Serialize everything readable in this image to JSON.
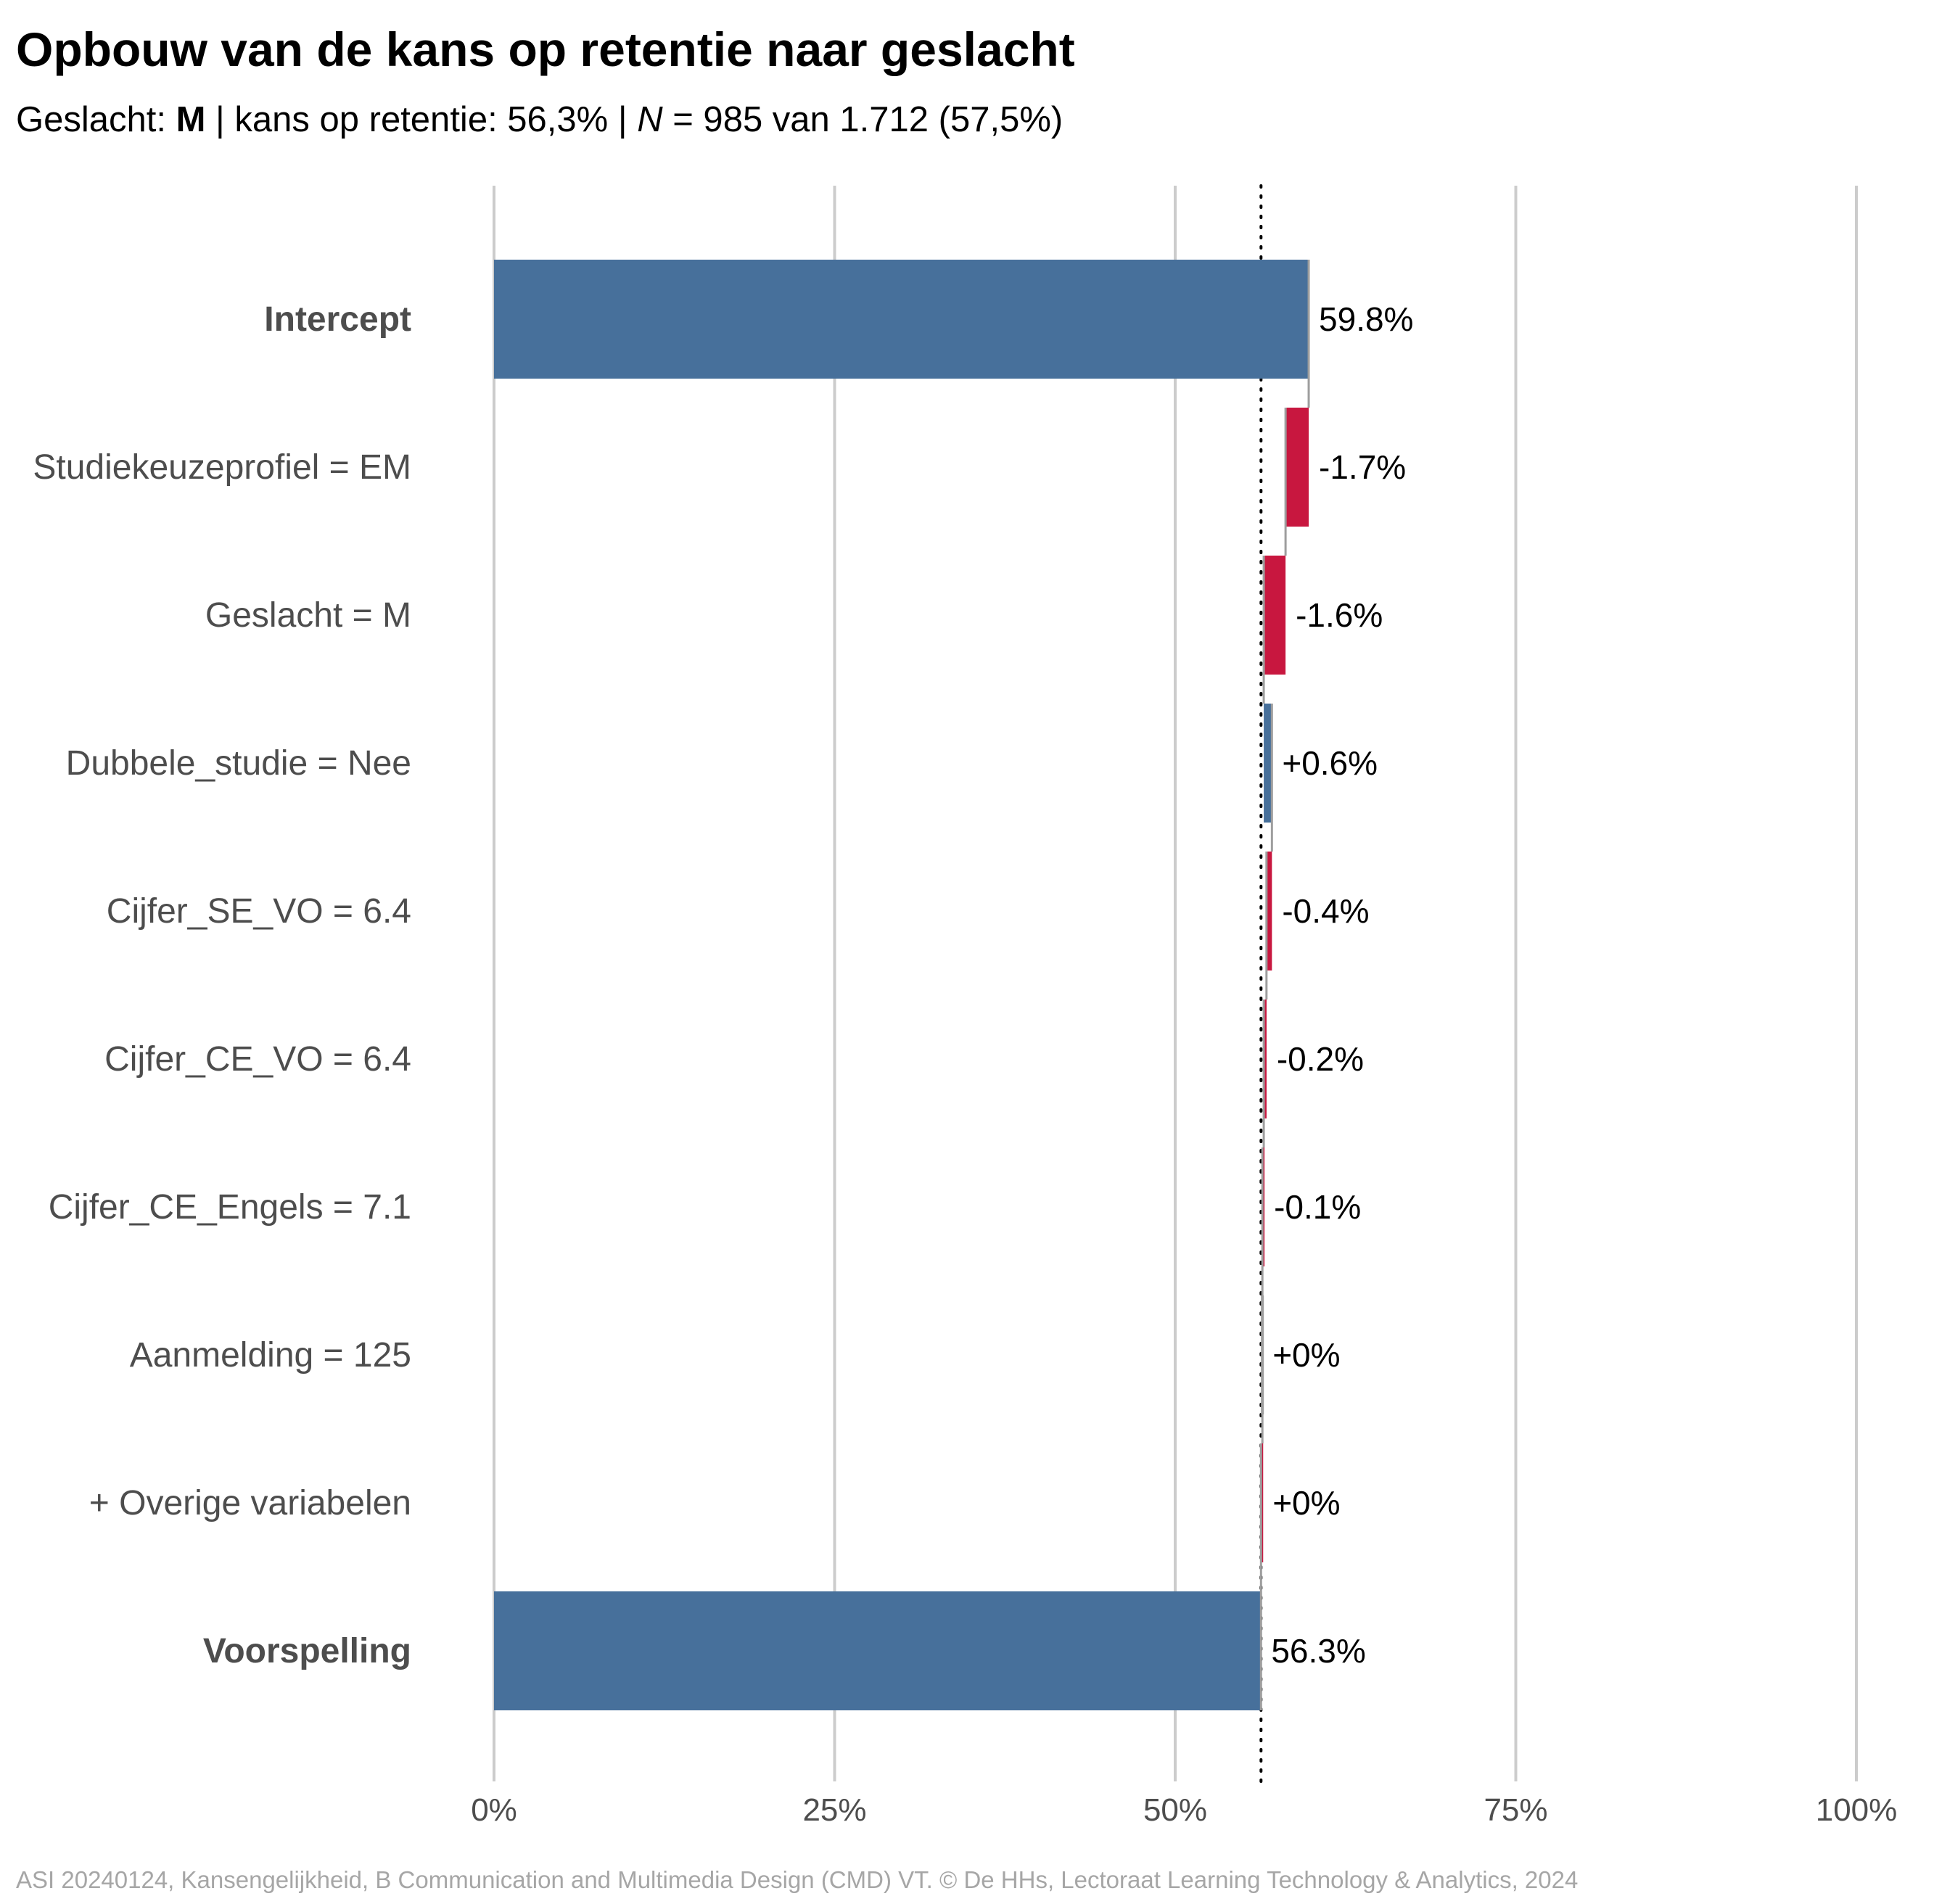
{
  "title": "Opbouw van de kans op retentie naar geslacht",
  "subtitle": {
    "prefix": "Geslacht: ",
    "group": "M",
    "sep1": " | kans op retentie: ",
    "probability": "56,3%",
    "sep2": " | ",
    "n_symbol": "N",
    "n_text": " = 985 van 1.712 (57,5%)"
  },
  "caption": "ASI 20240124, Kansengelijkheid, B Communication and Multimedia Design (CMD) VT. © De HHs, Lectoraat Learning Technology & Analytics, 2024",
  "colors": {
    "positive": "#47709b",
    "negative": "#c8173f",
    "connector": "#9e9e9e",
    "grid": "#cccccc",
    "axis_text": "#4d4d4d",
    "label_text": "#4d4d4d"
  },
  "chart_data": {
    "type": "bar",
    "orientation": "horizontal-waterfall",
    "xlim": [
      0,
      100
    ],
    "x_ticks": [
      0,
      25,
      50,
      75,
      100
    ],
    "x_tick_labels": [
      "0%",
      "25%",
      "50%",
      "75%",
      "100%"
    ],
    "reference_line": 56.3,
    "grid": true,
    "bars": [
      {
        "label": "Intercept",
        "bold": true,
        "kind": "total",
        "start": 0,
        "end": 59.8,
        "value_label": "59.8%"
      },
      {
        "label": "Studiekeuzeprofiel = EM",
        "bold": false,
        "kind": "step",
        "start": 59.8,
        "end": 58.1,
        "value_label": "-1.7%"
      },
      {
        "label": "Geslacht = M",
        "bold": false,
        "kind": "step",
        "start": 58.1,
        "end": 56.5,
        "value_label": "-1.6%"
      },
      {
        "label": "Dubbele_studie = Nee",
        "bold": false,
        "kind": "step",
        "start": 56.5,
        "end": 57.1,
        "value_label": "+0.6%"
      },
      {
        "label": "Cijfer_SE_VO = 6.4",
        "bold": false,
        "kind": "step",
        "start": 57.1,
        "end": 56.7,
        "value_label": "-0.4%"
      },
      {
        "label": "Cijfer_CE_VO = 6.4",
        "bold": false,
        "kind": "step",
        "start": 56.7,
        "end": 56.5,
        "value_label": "-0.2%"
      },
      {
        "label": "Cijfer_CE_Engels = 7.1",
        "bold": false,
        "kind": "step",
        "start": 56.5,
        "end": 56.4,
        "value_label": "-0.1%"
      },
      {
        "label": "Aanmelding = 125",
        "bold": false,
        "kind": "step",
        "start": 56.4,
        "end": 56.4,
        "value_label": "+0%"
      },
      {
        "label": "+ Overige variabelen",
        "bold": false,
        "kind": "step",
        "start": 56.4,
        "end": 56.3,
        "value_label": "+0%"
      },
      {
        "label": "Voorspelling",
        "bold": true,
        "kind": "total",
        "start": 0,
        "end": 56.3,
        "value_label": "56.3%"
      }
    ]
  }
}
